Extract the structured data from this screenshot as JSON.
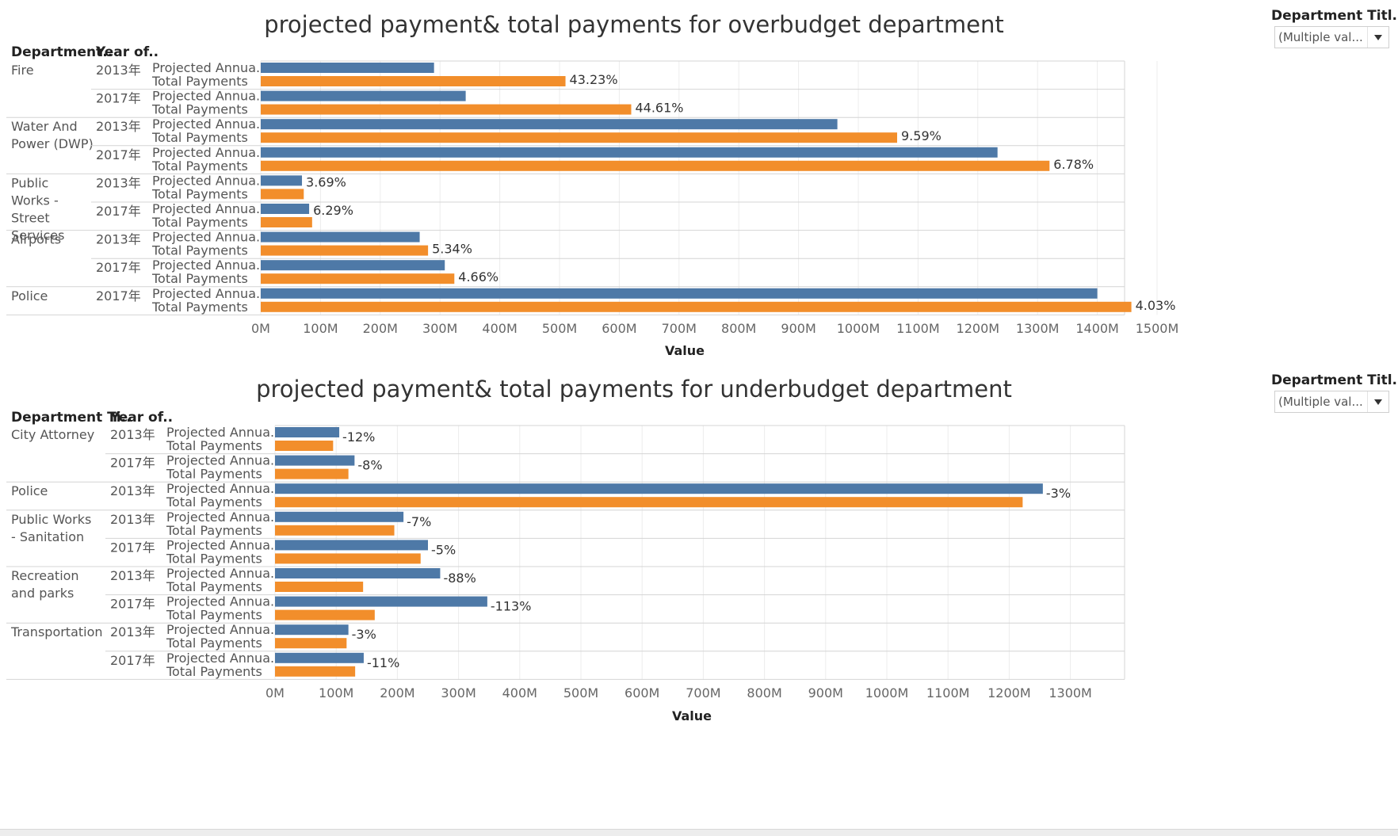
{
  "filters": [
    {
      "label": "Department Titl..",
      "value": "(Multiple val..."
    },
    {
      "label": "Department Titl..",
      "value": "(Multiple val..."
    }
  ],
  "colors": {
    "projected": "#4e79a7",
    "total": "#f28e2b",
    "grid": "#ececec",
    "divider": "#d4d4d4"
  },
  "chart_data": [
    {
      "type": "bar",
      "title": "projected payment&  total payments for  overbudget department",
      "header_department": "Department..",
      "header_year": "Year of..",
      "xlabel": "Value",
      "xlim": [
        0,
        1600
      ],
      "ticks": [
        "0M",
        "100M",
        "200M",
        "300M",
        "400M",
        "500M",
        "600M",
        "700M",
        "800M",
        "900M",
        "1000M",
        "1100M",
        "1200M",
        "1300M",
        "1400M",
        "1500M"
      ],
      "measure_labels": [
        "Projected Annua..",
        "Total Payments"
      ],
      "groups": [
        {
          "department": "Fire",
          "rows": [
            {
              "year": "2013年",
              "projected": 290,
              "total": 510,
              "label": "43.23%"
            },
            {
              "year": "2017年",
              "projected": 343,
              "total": 620,
              "label": "44.61%"
            }
          ]
        },
        {
          "department": "Water And Power (DWP)",
          "rows": [
            {
              "year": "2013年",
              "projected": 965,
              "total": 1065,
              "label": "9.59%"
            },
            {
              "year": "2017年",
              "projected": 1233,
              "total": 1320,
              "label": "6.78%"
            }
          ]
        },
        {
          "department": "Public Works - Street Services",
          "rows": [
            {
              "year": "2013年",
              "projected": 69,
              "total": 72,
              "label": "3.69%"
            },
            {
              "year": "2017年",
              "projected": 81,
              "total": 86,
              "label": "6.29%"
            }
          ]
        },
        {
          "department": "Airports",
          "rows": [
            {
              "year": "2013年",
              "projected": 266,
              "total": 280,
              "label": "5.34%"
            },
            {
              "year": "2017年",
              "projected": 308,
              "total": 324,
              "label": "4.66%"
            }
          ]
        },
        {
          "department": "Police",
          "rows": [
            {
              "year": "2017年",
              "projected": 1400,
              "total": 1457,
              "label": "4.03%"
            }
          ]
        }
      ]
    },
    {
      "type": "bar",
      "title": "projected payment&  total payments for  underbudget department",
      "header_department": "Department Ti..",
      "header_year": "Year of..",
      "xlabel": "Value",
      "xlim": [
        0,
        1400
      ],
      "ticks": [
        "0M",
        "100M",
        "200M",
        "300M",
        "400M",
        "500M",
        "600M",
        "700M",
        "800M",
        "900M",
        "1000M",
        "1100M",
        "1200M",
        "1300M"
      ],
      "measure_labels": [
        "Projected Annua..",
        "Total Payments"
      ],
      "groups": [
        {
          "department": "City Attorney",
          "rows": [
            {
              "year": "2013年",
              "projected": 105,
              "total": 95,
              "label": "-12%"
            },
            {
              "year": "2017年",
              "projected": 130,
              "total": 120,
              "label": "-8%"
            }
          ]
        },
        {
          "department": "Police",
          "rows": [
            {
              "year": "2013年",
              "projected": 1255,
              "total": 1222,
              "label": "-3%"
            }
          ]
        },
        {
          "department": "Public Works - Sanitation",
          "rows": [
            {
              "year": "2013年",
              "projected": 210,
              "total": 195,
              "label": "-7%"
            },
            {
              "year": "2017年",
              "projected": 250,
              "total": 238,
              "label": "-5%"
            }
          ]
        },
        {
          "department": "Recreation and parks",
          "rows": [
            {
              "year": "2013年",
              "projected": 270,
              "total": 144,
              "label": "-88%"
            },
            {
              "year": "2017年",
              "projected": 347,
              "total": 163,
              "label": "-113%"
            }
          ]
        },
        {
          "department": "Transportation",
          "rows": [
            {
              "year": "2013年",
              "projected": 120,
              "total": 117,
              "label": "-3%"
            },
            {
              "year": "2017年",
              "projected": 145,
              "total": 131,
              "label": "-11%"
            }
          ]
        }
      ]
    }
  ]
}
